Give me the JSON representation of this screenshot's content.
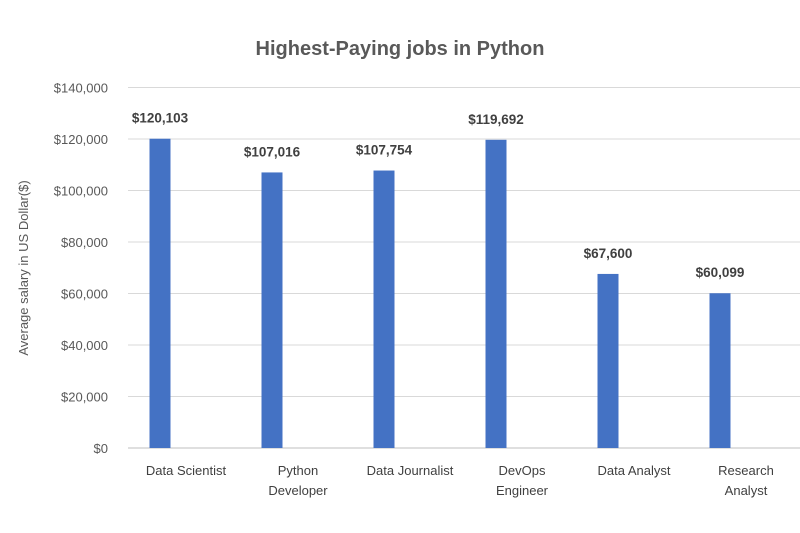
{
  "chart_data": {
    "type": "bar",
    "title": "Highest-Paying jobs in Python",
    "ylabel": "Average  salary in US Dollar($)",
    "xlabel": "",
    "categories": [
      [
        "Data Scientist"
      ],
      [
        "Python",
        "Developer"
      ],
      [
        "Data Journalist"
      ],
      [
        "DevOps",
        "Engineer"
      ],
      [
        "Data Analyst"
      ],
      [
        "Research",
        "Analyst"
      ]
    ],
    "values": [
      120103,
      107016,
      107754,
      119692,
      67600,
      60099
    ],
    "data_labels": [
      "$120,103",
      "$107,016",
      "$107,754",
      "$119,692",
      "$67,600",
      "$60,099"
    ],
    "yticks": [
      "$0",
      "$20,000",
      "$40,000",
      "$60,000",
      "$80,000",
      "$100,000",
      "$120,000",
      "$140,000"
    ],
    "ylim": [
      0,
      140000
    ],
    "grid": true,
    "legend": "none",
    "bar_color": "#4472C4"
  }
}
